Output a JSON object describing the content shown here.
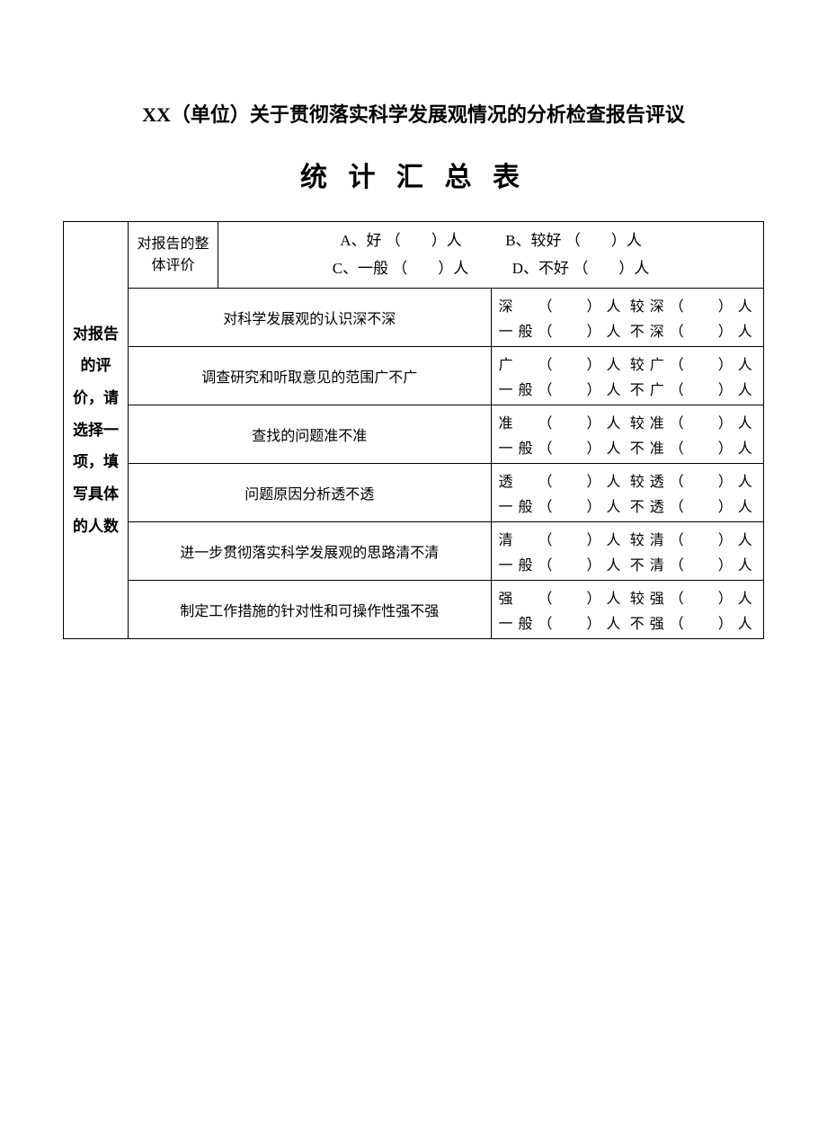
{
  "title_line1": "XX（单位）关于贯彻落实科学发展观情况的分析检查报告评议",
  "title_line2": "统 计 汇 总 表",
  "row_header": "对报告的评价，请选择一项，填写具体的人数",
  "overall": {
    "label": "对报告的整体评价",
    "A": "A、好",
    "B": "B、较好",
    "C": "C、一般",
    "D": "D、不好",
    "paren": "（　　）",
    "unit": "人"
  },
  "paren": "（　　）",
  "unit": "人",
  "rows": [
    {
      "q": "对科学发展观的认识深不深",
      "o": [
        "深",
        "较深",
        "一般",
        "不深"
      ]
    },
    {
      "q": "调查研究和听取意见的范围广不广",
      "o": [
        "广",
        "较广",
        "一般",
        "不广"
      ]
    },
    {
      "q": "查找的问题准不准",
      "o": [
        "准",
        "较准",
        "一般",
        "不准"
      ]
    },
    {
      "q": "问题原因分析透不透",
      "o": [
        "透",
        "较透",
        "一般",
        "不透"
      ]
    },
    {
      "q": "进一步贯彻落实科学发展观的思路清不清",
      "o": [
        "清",
        "较清",
        "一般",
        "不清"
      ]
    },
    {
      "q": "制定工作措施的针对性和可操作性强不强",
      "o": [
        "强",
        "较强",
        "一般",
        "不强"
      ]
    }
  ]
}
